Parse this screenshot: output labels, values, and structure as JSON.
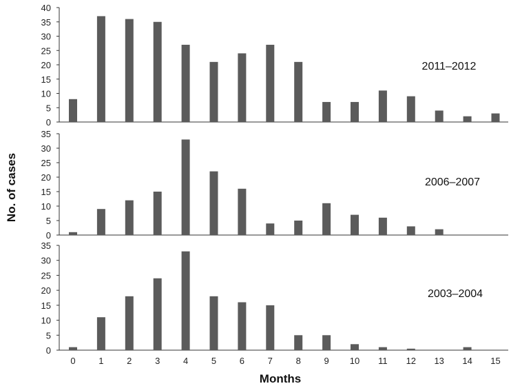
{
  "chart_data": [
    {
      "type": "bar",
      "label": "2011–2012",
      "categories": [
        "0",
        "1",
        "2",
        "3",
        "4",
        "5",
        "6",
        "7",
        "8",
        "9",
        "10",
        "11",
        "12",
        "13",
        "14",
        "15"
      ],
      "values": [
        8,
        37,
        36,
        35,
        27,
        21,
        24,
        27,
        21,
        7,
        7,
        11,
        9,
        4,
        2,
        3
      ],
      "ylim": [
        0,
        40
      ],
      "yticks": [
        0,
        5,
        10,
        15,
        20,
        25,
        30,
        35,
        40
      ]
    },
    {
      "type": "bar",
      "label": "2006–2007",
      "categories": [
        "0",
        "1",
        "2",
        "3",
        "4",
        "5",
        "6",
        "7",
        "8",
        "9",
        "10",
        "11",
        "12",
        "13",
        "14",
        "15"
      ],
      "values": [
        1,
        9,
        12,
        15,
        33,
        22,
        16,
        4,
        5,
        11,
        7,
        6,
        3,
        2,
        0,
        0
      ],
      "ylim": [
        0,
        35
      ],
      "yticks": [
        0,
        5,
        10,
        15,
        20,
        25,
        30,
        35
      ]
    },
    {
      "type": "bar",
      "label": "2003–2004",
      "categories": [
        "0",
        "1",
        "2",
        "3",
        "4",
        "5",
        "6",
        "7",
        "8",
        "9",
        "10",
        "11",
        "12",
        "13",
        "14",
        "15"
      ],
      "values": [
        1,
        11,
        18,
        24,
        33,
        18,
        16,
        15,
        5,
        5,
        2,
        1,
        0.5,
        0,
        1,
        0
      ],
      "ylim": [
        0,
        35
      ],
      "yticks": [
        0,
        5,
        10,
        15,
        20,
        25,
        30,
        35
      ]
    }
  ],
  "ylabel": "No. of cases",
  "xlabel": "Months",
  "xticks": [
    "0",
    "1",
    "2",
    "3",
    "4",
    "5",
    "6",
    "7",
    "8",
    "9",
    "10",
    "11",
    "12",
    "13",
    "14",
    "15"
  ],
  "colors": {
    "bar": "#5b5b5b",
    "axis": "#333333"
  }
}
